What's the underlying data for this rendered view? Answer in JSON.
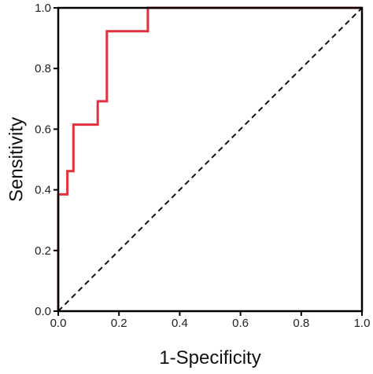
{
  "chart_data": {
    "type": "line",
    "xlabel": "1-Specificity",
    "ylabel": "Sensitivity",
    "xlim": [
      0.0,
      1.0
    ],
    "ylim": [
      0.0,
      1.0
    ],
    "x_ticks": [
      "0.0",
      "0.2",
      "0.4",
      "0.6",
      "0.8",
      "1.0"
    ],
    "y_ticks": [
      "0.0",
      "0.2",
      "0.4",
      "0.6",
      "0.8",
      "1.0"
    ],
    "grid": false,
    "series": [
      {
        "color": "#e0313d",
        "style": "solid",
        "x": [
          0.0,
          0.0,
          0.03,
          0.03,
          0.05,
          0.05,
          0.13,
          0.13,
          0.16,
          0.16,
          0.295,
          0.295,
          1.0
        ],
        "y": [
          0.0,
          0.385,
          0.385,
          0.462,
          0.462,
          0.615,
          0.615,
          0.692,
          0.692,
          0.923,
          0.923,
          1.0,
          1.0
        ]
      },
      {
        "color": "#111111",
        "style": "dashed",
        "x": [
          0.0,
          1.0
        ],
        "y": [
          0.0,
          1.0
        ]
      }
    ]
  }
}
